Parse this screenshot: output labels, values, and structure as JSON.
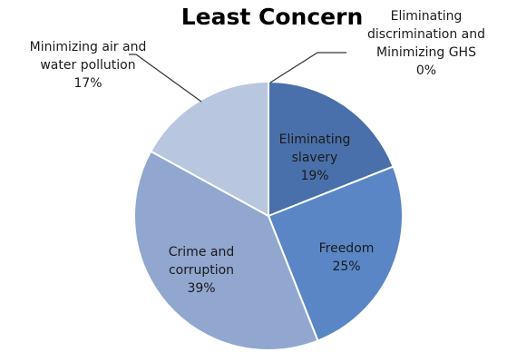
{
  "chart_data": {
    "type": "pie",
    "title": "Least Concern",
    "slices": [
      {
        "label": [
          "Eliminating",
          "discrimination and",
          "Minimizing GHS"
        ],
        "value": 0,
        "value_label": "0%",
        "color": "#3b5f97"
      },
      {
        "label": [
          "Eliminating",
          "slavery"
        ],
        "value": 19,
        "value_label": "19%",
        "color": "#4a70ab"
      },
      {
        "label": [
          "Freedom"
        ],
        "value": 25,
        "value_label": "25%",
        "color": "#5a86c6"
      },
      {
        "label": [
          "Crime and",
          "corruption"
        ],
        "value": 39,
        "value_label": "39%",
        "color": "#91a7cf"
      },
      {
        "label": [
          "Minimizing air and",
          "water pollution"
        ],
        "value": 17,
        "value_label": "17%",
        "color": "#b8c6e0"
      }
    ]
  }
}
